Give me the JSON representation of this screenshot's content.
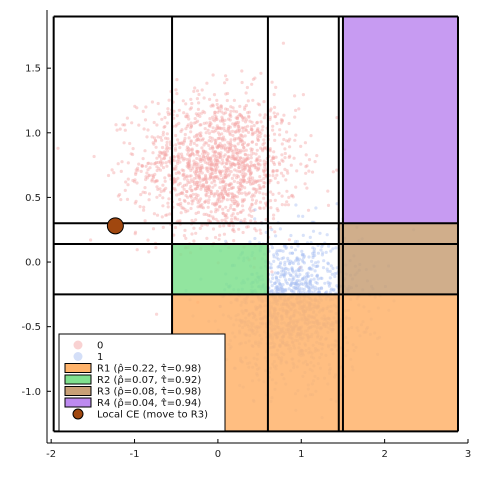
{
  "chart_data": {
    "type": "scatter",
    "title": "",
    "xlabel": "",
    "ylabel": "",
    "xlim": [
      -2.05,
      3.0
    ],
    "ylim": [
      -1.4,
      1.95
    ],
    "x_ticks": [
      -2,
      -1,
      0,
      1,
      2,
      3
    ],
    "y_ticks": [
      -1.0,
      -0.5,
      0.0,
      0.5,
      1.0,
      1.5
    ],
    "x_tick_labels": [
      "-2",
      "-1",
      "0",
      "1",
      "2",
      "3"
    ],
    "y_tick_labels": [
      "-1.0",
      "-0.5",
      "0.0",
      "0.5",
      "1.0",
      "1.5"
    ],
    "grid": true,
    "legend_position": "bottom-left",
    "scatter_series": [
      {
        "name": "0",
        "color": "#f4a6a6",
        "n_points": 1500,
        "center": [
          0.0,
          0.75
        ],
        "spread": [
          0.95,
          0.55
        ]
      },
      {
        "name": "1",
        "color": "#a9bff2",
        "n_points": 1300,
        "center": [
          0.9,
          -0.35
        ],
        "spread": [
          0.8,
          0.55
        ]
      }
    ],
    "regions": [
      {
        "name": "R1 (ρ̂=0.22, τ̂=0.98)",
        "color": "#ffb36b",
        "x": [
          -0.55,
          2.88
        ],
        "y": [
          -1.31,
          -0.25
        ]
      },
      {
        "name": "R2 (ρ̂=0.07, τ̂=0.92)",
        "color": "#7fe08e",
        "x": [
          -0.55,
          0.6
        ],
        "y": [
          -0.25,
          0.14
        ]
      },
      {
        "name": "R3 (ρ̂=0.08, τ̂=0.98)",
        "color": "#c8a077",
        "x": [
          1.45,
          2.88
        ],
        "y": [
          -0.25,
          0.3
        ]
      },
      {
        "name": "R4 (ρ̂=0.04, τ̂=0.94)",
        "color": "#bd8af0",
        "x": [
          1.5,
          2.88
        ],
        "y": [
          0.3,
          1.9
        ]
      }
    ],
    "grid_lines_x": [
      -1.97,
      -0.55,
      0.6,
      1.45,
      1.5,
      2.88
    ],
    "grid_lines_y": [
      -1.31,
      -0.25,
      0.14,
      0.3,
      1.9
    ],
    "point": {
      "name": "Local CE (move to R3)",
      "x": -1.23,
      "y": 0.28,
      "color": "#a0470f"
    }
  }
}
